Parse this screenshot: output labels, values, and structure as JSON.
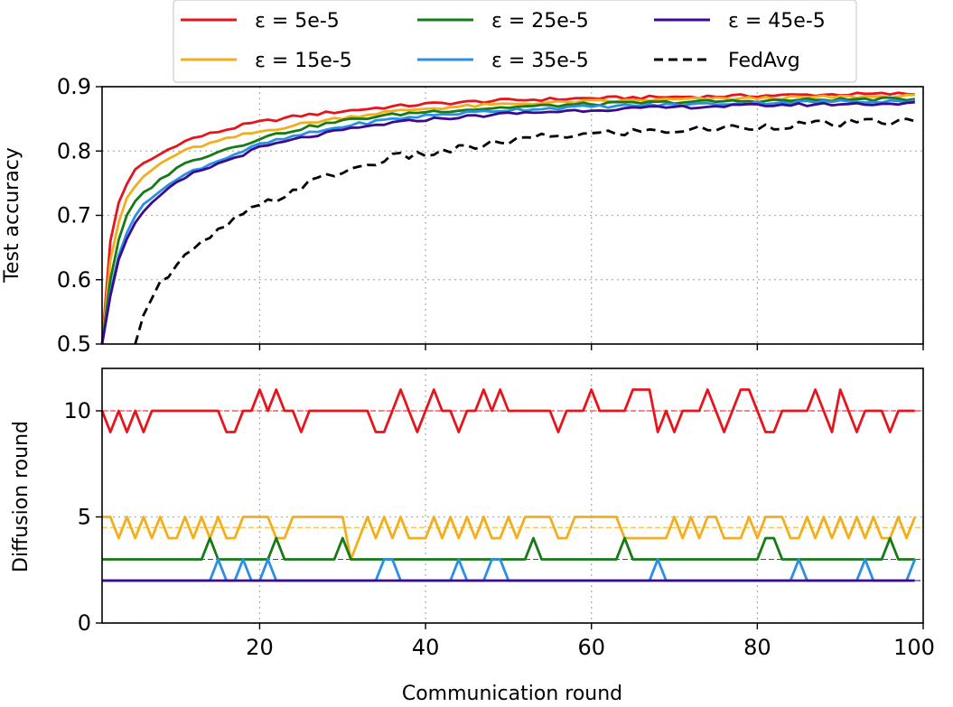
{
  "legend": {
    "items": [
      {
        "label": "ε = 5e-5",
        "color": "#e8141c",
        "dash": "solid"
      },
      {
        "label": "ε = 15e-5",
        "color": "#f2ae1c",
        "dash": "solid"
      },
      {
        "label": "ε = 25e-5",
        "color": "#167a16",
        "dash": "solid"
      },
      {
        "label": "ε = 35e-5",
        "color": "#2a8fe6",
        "dash": "solid"
      },
      {
        "label": "ε = 45e-5",
        "color": "#3c0a8c",
        "dash": "solid"
      },
      {
        "label": "FedAvg",
        "color": "#000000",
        "dash": "dashed"
      }
    ]
  },
  "chart_data": [
    {
      "type": "line",
      "title": "",
      "xlabel": "",
      "ylabel": "Test accuracy",
      "xlim": [
        1,
        100
      ],
      "ylim": [
        0.5,
        0.9
      ],
      "xticks": [
        20,
        40,
        60,
        80,
        100
      ],
      "yticks": [
        0.5,
        0.6,
        0.7,
        0.8,
        0.9
      ],
      "ytick_labels": [
        "0.5",
        "0.6",
        "0.7",
        "0.8",
        "0.9"
      ],
      "xtick_labels_visible": false,
      "grid": true,
      "series": [
        {
          "name": "ε = 5e-5",
          "color": "#e8141c",
          "dash": "solid",
          "curve": {
            "x": [
              1,
              2,
              3,
              4,
              5,
              6,
              8,
              10,
              12,
              15,
              18,
              20,
              25,
              30,
              35,
              40,
              50,
              60,
              70,
              80,
              90,
              99
            ],
            "y": [
              0.5,
              0.66,
              0.72,
              0.75,
              0.77,
              0.78,
              0.795,
              0.81,
              0.82,
              0.83,
              0.84,
              0.845,
              0.855,
              0.862,
              0.868,
              0.873,
              0.879,
              0.882,
              0.884,
              0.886,
              0.888,
              0.889
            ]
          }
        },
        {
          "name": "ε = 15e-5",
          "color": "#f2ae1c",
          "dash": "solid",
          "curve": {
            "x": [
              1,
              2,
              3,
              4,
              5,
              6,
              8,
              10,
              12,
              15,
              18,
              20,
              25,
              30,
              35,
              40,
              50,
              60,
              70,
              80,
              90,
              99
            ],
            "y": [
              0.5,
              0.63,
              0.69,
              0.725,
              0.745,
              0.76,
              0.78,
              0.795,
              0.805,
              0.815,
              0.825,
              0.83,
              0.842,
              0.852,
              0.86,
              0.866,
              0.873,
              0.877,
              0.88,
              0.882,
              0.884,
              0.885
            ]
          }
        },
        {
          "name": "ε = 25e-5",
          "color": "#167a16",
          "dash": "solid",
          "curve": {
            "x": [
              1,
              2,
              3,
              4,
              5,
              6,
              8,
              10,
              12,
              15,
              18,
              20,
              25,
              30,
              35,
              40,
              50,
              60,
              70,
              80,
              90,
              99
            ],
            "y": [
              0.5,
              0.6,
              0.66,
              0.7,
              0.72,
              0.735,
              0.755,
              0.775,
              0.785,
              0.8,
              0.81,
              0.82,
              0.835,
              0.847,
              0.855,
              0.861,
              0.868,
              0.873,
              0.876,
              0.878,
              0.88,
              0.881
            ]
          }
        },
        {
          "name": "ε = 35e-5",
          "color": "#2a8fe6",
          "dash": "solid",
          "curve": {
            "x": [
              1,
              2,
              3,
              4,
              5,
              6,
              8,
              10,
              12,
              15,
              18,
              20,
              25,
              30,
              35,
              40,
              50,
              60,
              70,
              80,
              90,
              99
            ],
            "y": [
              0.5,
              0.58,
              0.64,
              0.675,
              0.7,
              0.715,
              0.74,
              0.755,
              0.77,
              0.785,
              0.8,
              0.81,
              0.825,
              0.838,
              0.848,
              0.855,
              0.864,
              0.869,
              0.872,
              0.875,
              0.877,
              0.878
            ]
          }
        },
        {
          "name": "ε = 45e-5",
          "color": "#3c0a8c",
          "dash": "solid",
          "curve": {
            "x": [
              1,
              2,
              3,
              4,
              5,
              6,
              8,
              10,
              12,
              15,
              18,
              20,
              25,
              30,
              35,
              40,
              50,
              60,
              70,
              80,
              90,
              99
            ],
            "y": [
              0.5,
              0.575,
              0.63,
              0.665,
              0.69,
              0.705,
              0.73,
              0.75,
              0.765,
              0.78,
              0.795,
              0.805,
              0.82,
              0.832,
              0.842,
              0.849,
              0.858,
              0.864,
              0.868,
              0.871,
              0.873,
              0.874
            ]
          }
        },
        {
          "name": "FedAvg",
          "color": "#000000",
          "dash": "dashed",
          "curve": {
            "x": [
              5,
              6,
              7,
              8,
              9,
              10,
              11,
              12,
              14,
              16,
              18,
              20,
              22,
              25,
              28,
              32,
              36,
              40,
              45,
              50,
              55,
              60,
              65,
              70,
              75,
              80,
              85,
              90,
              95,
              99
            ],
            "y": [
              0.5,
              0.545,
              0.575,
              0.595,
              0.605,
              0.62,
              0.635,
              0.645,
              0.665,
              0.685,
              0.7,
              0.715,
              0.725,
              0.745,
              0.76,
              0.775,
              0.79,
              0.795,
              0.805,
              0.815,
              0.823,
              0.826,
              0.83,
              0.832,
              0.835,
              0.838,
              0.841,
              0.843,
              0.845,
              0.846
            ]
          }
        }
      ]
    },
    {
      "type": "line",
      "title": "",
      "xlabel": "Communication round",
      "ylabel": "Diffusion round",
      "xlim": [
        1,
        100
      ],
      "ylim": [
        0,
        12
      ],
      "xticks": [
        20,
        40,
        60,
        80,
        100
      ],
      "xtick_labels": [
        "20",
        "40",
        "60",
        "80",
        "100"
      ],
      "yticks": [
        0,
        5,
        10
      ],
      "ytick_labels": [
        "0",
        "5",
        "10"
      ],
      "grid": true,
      "series": [
        {
          "name": "ε = 5e-5",
          "color": "#e8141c",
          "mean": 10.0,
          "x": [
            1,
            100
          ],
          "y": [
            10,
            10
          ],
          "deviations": [
            [
              2,
              9
            ],
            [
              4,
              9
            ],
            [
              6,
              9
            ],
            [
              16,
              9
            ],
            [
              17,
              9
            ],
            [
              19,
              10
            ],
            [
              20,
              11
            ],
            [
              21,
              10
            ],
            [
              22,
              11
            ],
            [
              25,
              9
            ],
            [
              34,
              9
            ],
            [
              35,
              9
            ],
            [
              37,
              11
            ],
            [
              38,
              10
            ],
            [
              39,
              9
            ],
            [
              41,
              11
            ],
            [
              44,
              9
            ],
            [
              47,
              11
            ],
            [
              48,
              10
            ],
            [
              49,
              11
            ],
            [
              56,
              9
            ],
            [
              60,
              11
            ],
            [
              61,
              10
            ],
            [
              62,
              10
            ],
            [
              65,
              11
            ],
            [
              66,
              11
            ],
            [
              67,
              11
            ],
            [
              68,
              9
            ],
            [
              70,
              9
            ],
            [
              71,
              10
            ],
            [
              74,
              11
            ],
            [
              76,
              9
            ],
            [
              78,
              11
            ],
            [
              79,
              11
            ],
            [
              81,
              9
            ],
            [
              82,
              9
            ],
            [
              87,
              11
            ],
            [
              88,
              10
            ],
            [
              89,
              9
            ],
            [
              90,
              11
            ],
            [
              92,
              9
            ],
            [
              96,
              9
            ]
          ]
        },
        {
          "name": "ε = 15e-5",
          "color": "#f2ae1c",
          "mean": 4.5,
          "x": [
            1,
            100
          ],
          "y": [
            5,
            5
          ],
          "deviations": [
            [
              3,
              4
            ],
            [
              5,
              4
            ],
            [
              7,
              4
            ],
            [
              9,
              4
            ],
            [
              10,
              4
            ],
            [
              12,
              4
            ],
            [
              14,
              4
            ],
            [
              16,
              4
            ],
            [
              17,
              4
            ],
            [
              22,
              4
            ],
            [
              23,
              4
            ],
            [
              31,
              3
            ],
            [
              32,
              4
            ],
            [
              34,
              4
            ],
            [
              36,
              4
            ],
            [
              38,
              4
            ],
            [
              39,
              4
            ],
            [
              40,
              4
            ],
            [
              42,
              4
            ],
            [
              44,
              4
            ],
            [
              46,
              4
            ],
            [
              48,
              4
            ],
            [
              49,
              4
            ],
            [
              51,
              4
            ],
            [
              56,
              4
            ],
            [
              57,
              4
            ],
            [
              64,
              4
            ],
            [
              65,
              4
            ],
            [
              66,
              4
            ],
            [
              67,
              4
            ],
            [
              68,
              4
            ],
            [
              69,
              4
            ],
            [
              71,
              4
            ],
            [
              73,
              4
            ],
            [
              76,
              4
            ],
            [
              77,
              4
            ],
            [
              78,
              4
            ],
            [
              80,
              4
            ],
            [
              84,
              4
            ],
            [
              85,
              4
            ],
            [
              87,
              4
            ],
            [
              89,
              4
            ],
            [
              91,
              4
            ],
            [
              93,
              4
            ],
            [
              95,
              4
            ],
            [
              96,
              4
            ],
            [
              98,
              4
            ]
          ]
        },
        {
          "name": "ε = 25e-5",
          "color": "#167a16",
          "mean": 3.0,
          "x": [
            1,
            100
          ],
          "y": [
            3,
            3
          ],
          "deviations": [
            [
              14,
              4
            ],
            [
              22,
              4
            ],
            [
              30,
              4
            ],
            [
              53,
              4
            ],
            [
              64,
              4
            ],
            [
              81,
              4
            ],
            [
              82,
              4
            ],
            [
              96,
              4
            ]
          ]
        },
        {
          "name": "ε = 35e-5",
          "color": "#2a8fe6",
          "mean": 2.0,
          "x": [
            1,
            100
          ],
          "y": [
            2,
            2
          ],
          "deviations": [
            [
              15,
              3
            ],
            [
              18,
              3
            ],
            [
              21,
              3
            ],
            [
              35,
              3
            ],
            [
              36,
              3
            ],
            [
              44,
              3
            ],
            [
              48,
              3
            ],
            [
              49,
              3
            ],
            [
              68,
              3
            ],
            [
              85,
              3
            ],
            [
              93,
              3
            ],
            [
              99,
              3
            ]
          ]
        },
        {
          "name": "ε = 45e-5",
          "color": "#3c0a8c",
          "mean": 2.0,
          "x": [
            1,
            100
          ],
          "y": [
            2,
            2
          ],
          "deviations": []
        }
      ]
    }
  ]
}
